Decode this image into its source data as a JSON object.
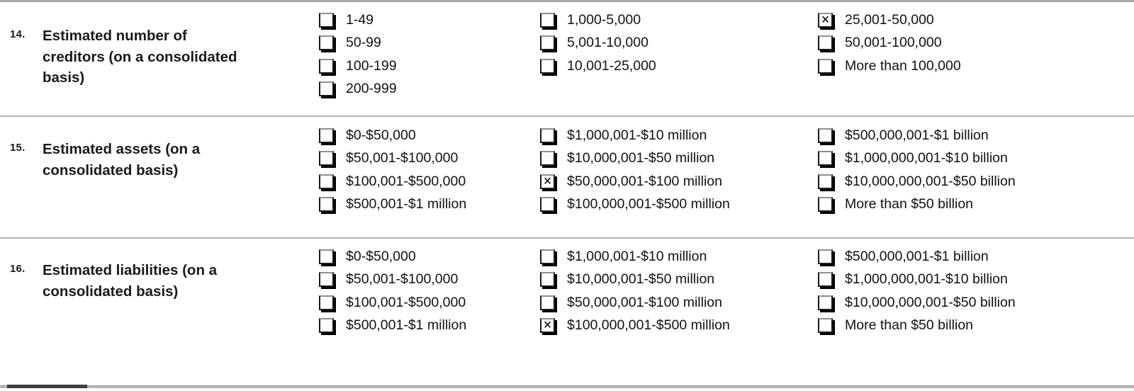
{
  "form": {
    "questions": [
      {
        "number": "14.",
        "label": "Estimated number of creditors (on a consolidated basis)",
        "columns": [
          {
            "items": [
              {
                "label": "1-49",
                "checked": false
              },
              {
                "label": "50-99",
                "checked": false
              },
              {
                "label": "100-199",
                "checked": false
              },
              {
                "label": "200-999",
                "checked": false
              }
            ]
          },
          {
            "items": [
              {
                "label": "1,000-5,000",
                "checked": false
              },
              {
                "label": "5,001-10,000",
                "checked": false
              },
              {
                "label": "10,001-25,000",
                "checked": false
              }
            ]
          },
          {
            "items": [
              {
                "label": "25,001-50,000",
                "checked": true
              },
              {
                "label": "50,001-100,000",
                "checked": false
              },
              {
                "label": "More than 100,000",
                "checked": false
              }
            ]
          }
        ]
      },
      {
        "number": "15.",
        "label": "Estimated assets (on a consolidated basis)",
        "columns": [
          {
            "items": [
              {
                "label": "$0-$50,000",
                "checked": false
              },
              {
                "label": "$50,001-$100,000",
                "checked": false
              },
              {
                "label": "$100,001-$500,000",
                "checked": false
              },
              {
                "label": "$500,001-$1 million",
                "checked": false
              }
            ]
          },
          {
            "items": [
              {
                "label": "$1,000,001-$10 million",
                "checked": false
              },
              {
                "label": "$10,000,001-$50 million",
                "checked": false
              },
              {
                "label": "$50,000,001-$100 million",
                "checked": true
              },
              {
                "label": "$100,000,001-$500 million",
                "checked": false
              }
            ]
          },
          {
            "items": [
              {
                "label": "$500,000,001-$1 billion",
                "checked": false
              },
              {
                "label": "$1,000,000,001-$10 billion",
                "checked": false
              },
              {
                "label": "$10,000,000,001-$50 billion",
                "checked": false
              },
              {
                "label": "More than $50 billion",
                "checked": false
              }
            ]
          }
        ]
      },
      {
        "number": "16.",
        "label": "Estimated liabilities (on a consolidated basis)",
        "columns": [
          {
            "items": [
              {
                "label": "$0-$50,000",
                "checked": false
              },
              {
                "label": "$50,001-$100,000",
                "checked": false
              },
              {
                "label": "$100,001-$500,000",
                "checked": false
              },
              {
                "label": "$500,001-$1 million",
                "checked": false
              }
            ]
          },
          {
            "items": [
              {
                "label": "$1,000,001-$10 million",
                "checked": false
              },
              {
                "label": "$10,000,001-$50 million",
                "checked": false
              },
              {
                "label": "$50,000,001-$100 million",
                "checked": false
              },
              {
                "label": "$100,000,001-$500 million",
                "checked": true
              }
            ]
          },
          {
            "items": [
              {
                "label": "$500,000,001-$1 billion",
                "checked": false
              },
              {
                "label": "$1,000,000,001-$10 billion",
                "checked": false
              },
              {
                "label": "$10,000,000,001-$50 billion",
                "checked": false
              },
              {
                "label": "More than $50 billion",
                "checked": false
              }
            ]
          }
        ]
      }
    ],
    "colors": {
      "divider": "#b3b3b3",
      "top_rule": "#a6a6a6",
      "bottom_rule_gray": "#b8b8b8",
      "bottom_rule_dark": "#3f3f3f",
      "text": "#111111"
    }
  }
}
